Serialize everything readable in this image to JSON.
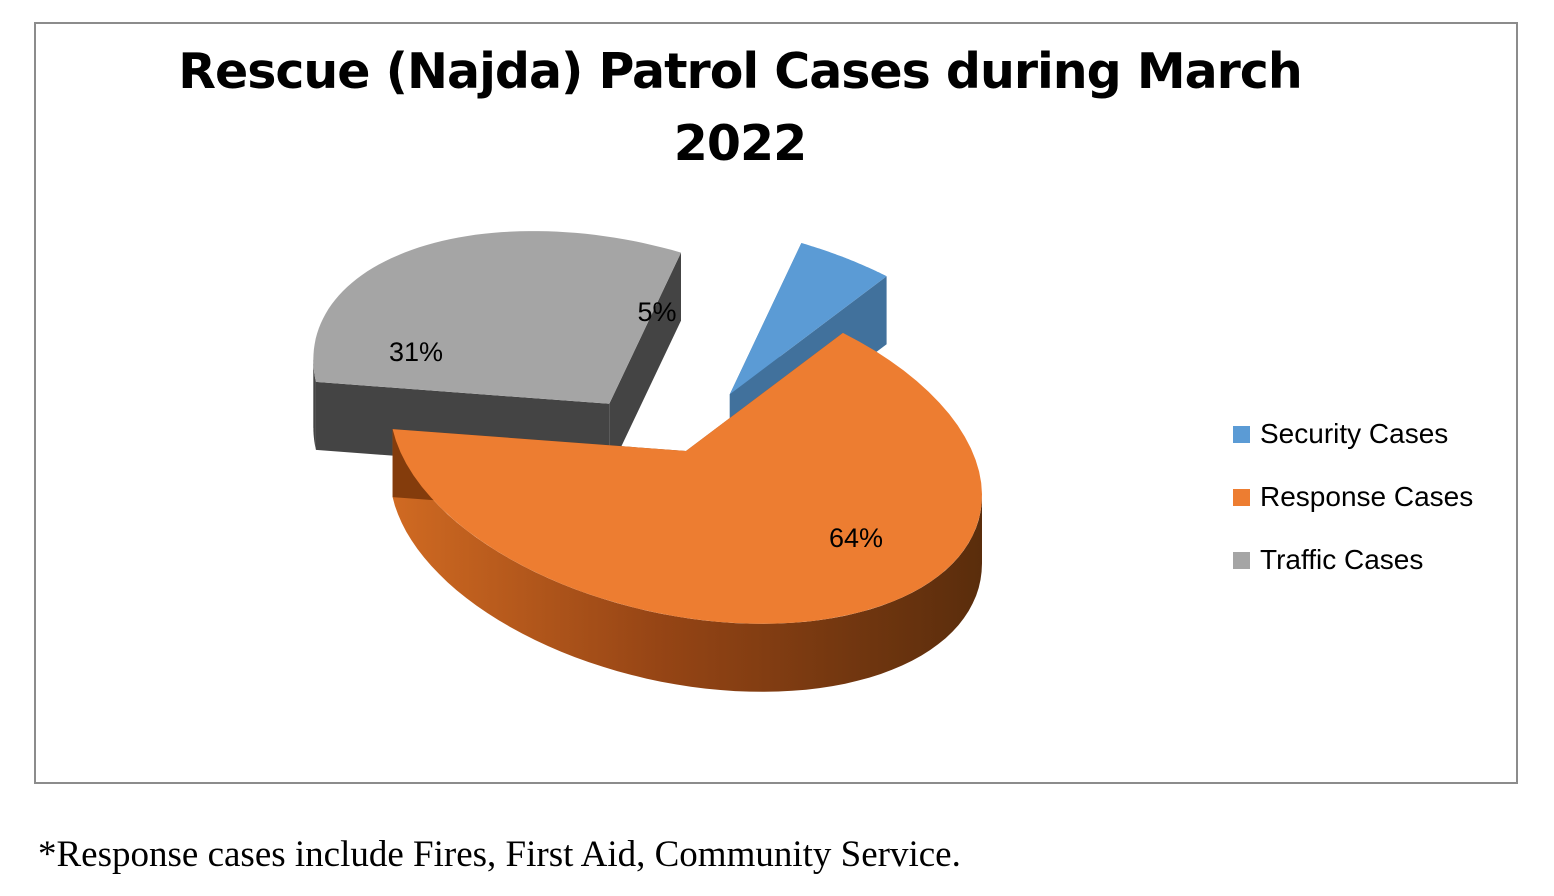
{
  "chart_data": {
    "type": "pie",
    "title": "Rescue (Najda) Patrol Cases during March 2022",
    "title_lines": [
      "Rescue (Najda) Patrol Cases during March",
      "2022"
    ],
    "categories": [
      "Security Cases",
      "Response Cases",
      "Traffic Cases"
    ],
    "values": [
      5,
      64,
      31
    ],
    "data_labels": [
      "5%",
      "64%",
      "31%"
    ],
    "colors": [
      "#5b9bd5",
      "#ed7d31",
      "#a5a5a5"
    ],
    "side_colors": [
      "#41719c",
      "#843c0c",
      "#444444"
    ],
    "legend_position": "right",
    "style": "3d-exploded"
  },
  "footnote": "*Response cases include Fires, First Aid, Community Service."
}
